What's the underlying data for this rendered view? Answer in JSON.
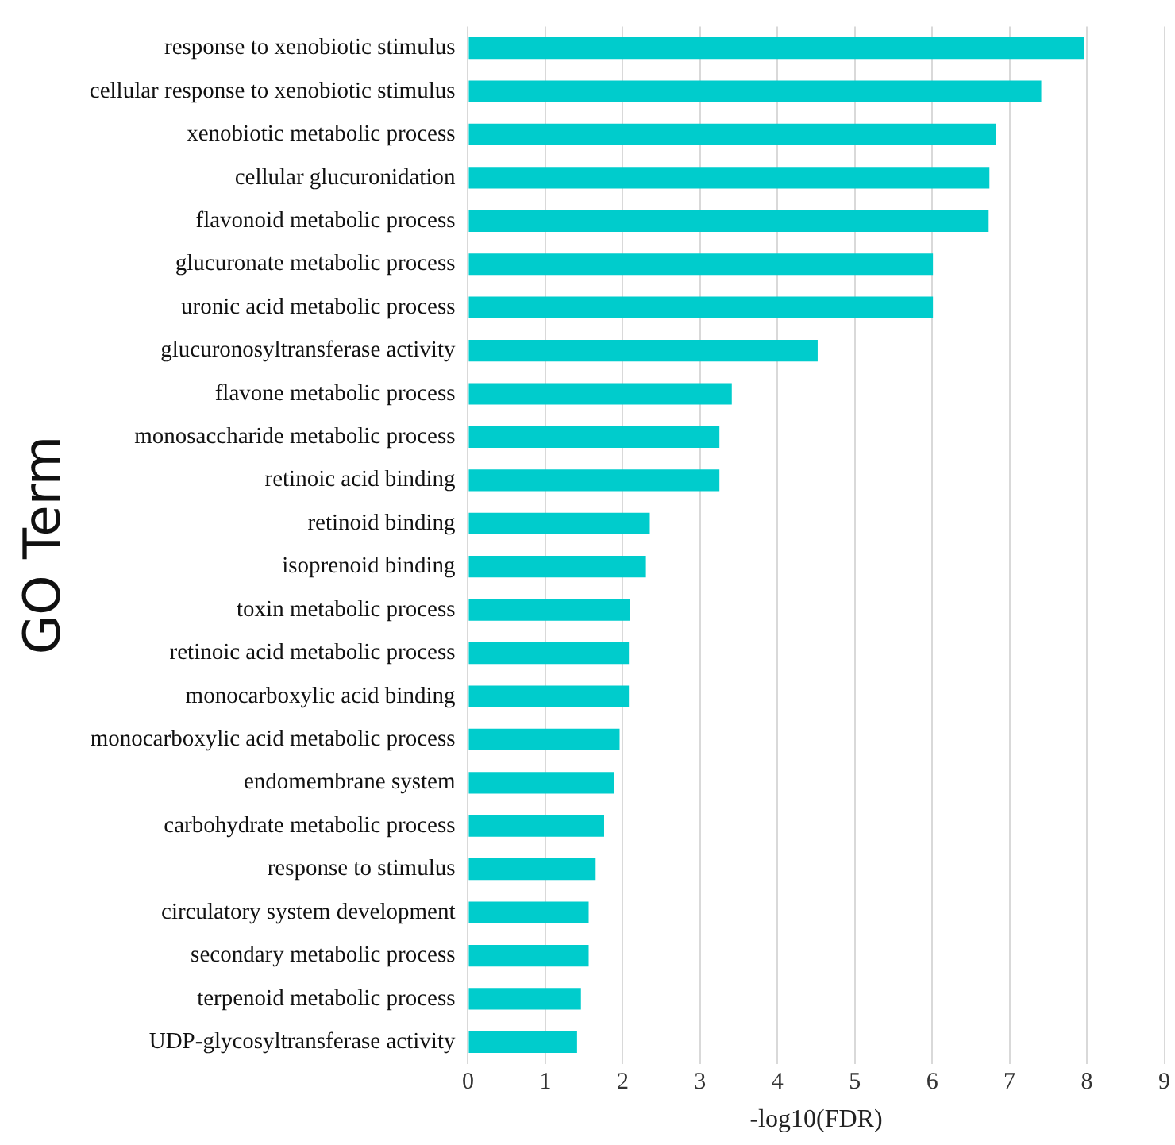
{
  "chart_data": {
    "type": "bar",
    "orientation": "horizontal",
    "xlabel": "-log10(FDR)",
    "ylabel": "GO Term",
    "categories": [
      "response to xenobiotic stimulus",
      "cellular response to xenobiotic stimulus",
      "xenobiotic metabolic process",
      "cellular glucuronidation",
      "flavonoid metabolic process",
      "glucuronate metabolic process",
      "uronic acid metabolic process",
      "glucuronosyltransferase activity",
      "flavone metabolic process",
      "monosaccharide metabolic process",
      "retinoic acid binding",
      "retinoid binding",
      "isoprenoid binding",
      "toxin metabolic process",
      "retinoic acid metabolic process",
      "monocarboxylic acid binding",
      "monocarboxylic acid metabolic process",
      "endomembrane system",
      "carbohydrate metabolic process",
      "response to stimulus",
      "circulatory system development",
      "secondary metabolic process",
      "terpenoid metabolic process",
      "UDP-glycosyltransferase activity"
    ],
    "values": [
      7.96,
      7.41,
      6.82,
      6.74,
      6.73,
      6.01,
      6.01,
      4.52,
      3.41,
      3.25,
      3.25,
      2.35,
      2.3,
      2.09,
      2.08,
      2.08,
      1.96,
      1.89,
      1.76,
      1.65,
      1.56,
      1.56,
      1.46,
      1.41
    ],
    "color": "#00cccc",
    "xlim": [
      0,
      9
    ],
    "xticks": [
      0,
      1,
      2,
      3,
      4,
      5,
      6,
      7,
      8,
      9
    ],
    "grid": "x",
    "legend": false
  }
}
